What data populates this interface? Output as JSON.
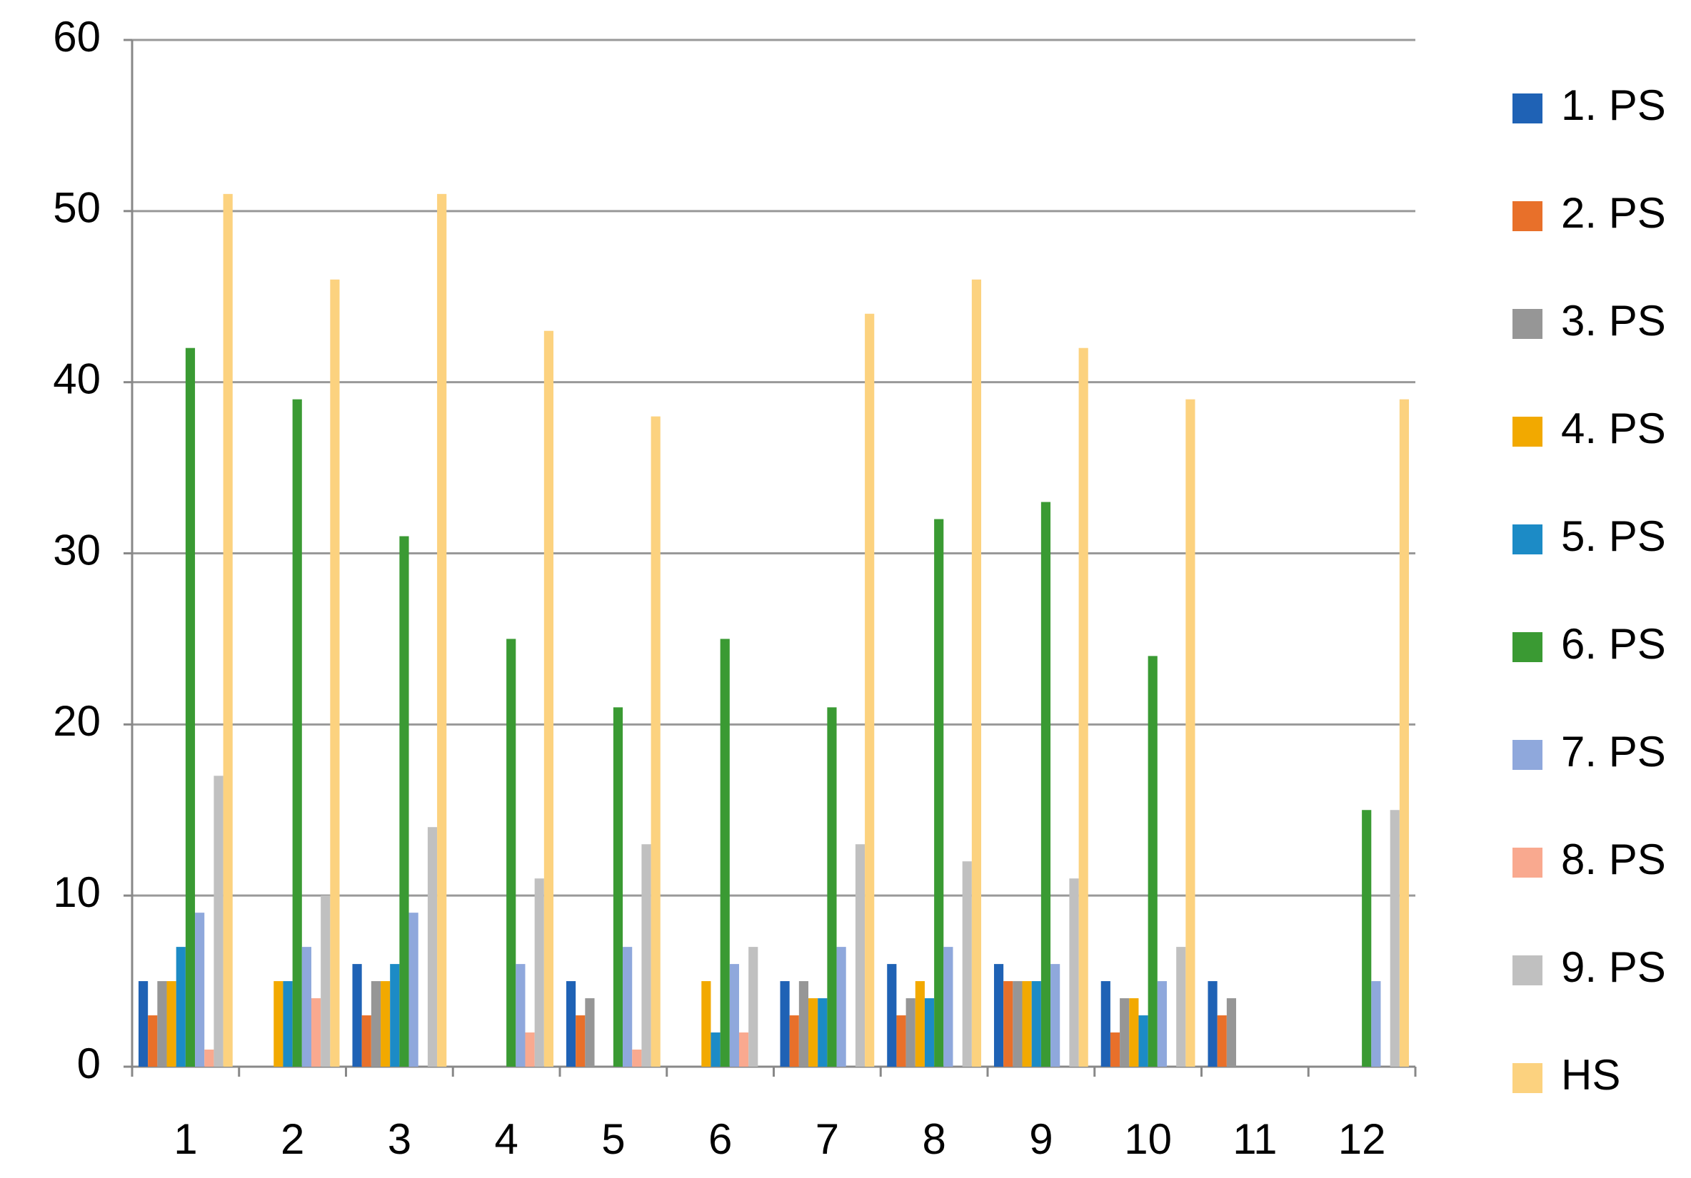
{
  "chart_data": {
    "type": "bar",
    "categories": [
      "1",
      "2",
      "3",
      "4",
      "5",
      "6",
      "7",
      "8",
      "9",
      "10",
      "11",
      "12"
    ],
    "series": [
      {
        "name": "1. PS",
        "color": "#1f62b5",
        "values": [
          5,
          0,
          6,
          0,
          5,
          0,
          5,
          6,
          6,
          5,
          5,
          0
        ]
      },
      {
        "name": "2. PS",
        "color": "#e8702a",
        "values": [
          3,
          0,
          3,
          0,
          3,
          0,
          3,
          3,
          5,
          2,
          3,
          0
        ]
      },
      {
        "name": "3. PS",
        "color": "#969696",
        "values": [
          5,
          0,
          5,
          0,
          4,
          0,
          5,
          4,
          5,
          4,
          4,
          0
        ]
      },
      {
        "name": "4. PS",
        "color": "#f2a900",
        "values": [
          5,
          5,
          5,
          0,
          0,
          5,
          4,
          5,
          5,
          4,
          0,
          0
        ]
      },
      {
        "name": "5. PS",
        "color": "#1c8bc6",
        "values": [
          7,
          5,
          6,
          0,
          0,
          2,
          4,
          4,
          5,
          3,
          0,
          0
        ]
      },
      {
        "name": "6. PS",
        "color": "#3a9a33",
        "values": [
          42,
          39,
          31,
          25,
          21,
          25,
          21,
          32,
          33,
          24,
          0,
          15
        ]
      },
      {
        "name": "7. PS",
        "color": "#8fa8dc",
        "values": [
          9,
          7,
          9,
          6,
          7,
          6,
          7,
          7,
          6,
          5,
          0,
          5
        ]
      },
      {
        "name": "8. PS",
        "color": "#f9a98f",
        "values": [
          1,
          4,
          0,
          2,
          1,
          2,
          0,
          0,
          0,
          0,
          0,
          0
        ]
      },
      {
        "name": "9. PS",
        "color": "#c0c0c0",
        "values": [
          17,
          10,
          14,
          11,
          13,
          7,
          13,
          12,
          11,
          7,
          0,
          15
        ]
      },
      {
        "name": "HS",
        "color": "#fcd27f",
        "values": [
          51,
          46,
          51,
          43,
          38,
          0,
          44,
          46,
          42,
          39,
          0,
          39
        ]
      }
    ],
    "ylim": [
      0,
      60
    ],
    "yticks": [
      0,
      10,
      20,
      30,
      40,
      50,
      60
    ],
    "grid": true,
    "legend": "right"
  }
}
